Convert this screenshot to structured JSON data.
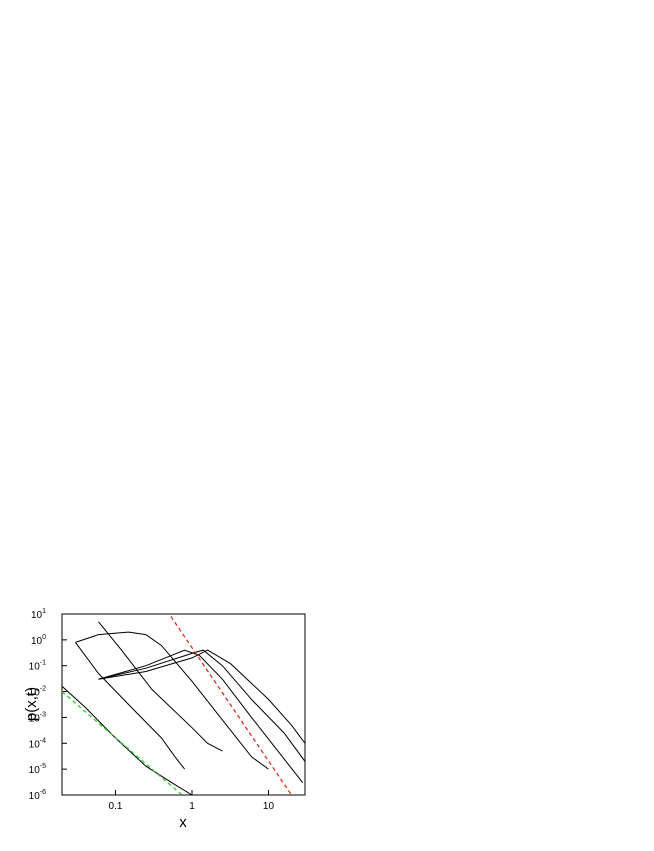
{
  "chart_data": {
    "type": "line",
    "xlabel": "x",
    "ylabel": "p(x,t)",
    "xscale": "log",
    "yscale": "log",
    "xlim": [
      0.02,
      30
    ],
    "ylim": [
      1e-06,
      10
    ],
    "xticks": [
      0.1,
      1,
      10
    ],
    "yticks": [
      {
        "value": 10,
        "label": "10",
        "exponent": "1"
      },
      {
        "value": 1,
        "label": "10",
        "exponent": "0"
      },
      {
        "value": 0.1,
        "label": "10",
        "exponent": "-1"
      },
      {
        "value": 0.01,
        "label": "10",
        "exponent": "-2"
      },
      {
        "value": 0.001,
        "label": "10",
        "exponent": "-3"
      },
      {
        "value": 0.0001,
        "label": "10",
        "exponent": "-4"
      },
      {
        "value": 1e-05,
        "label": "10",
        "exponent": "-5"
      },
      {
        "value": 1e-06,
        "label": "10",
        "exponent": "-6"
      }
    ],
    "series": [
      {
        "color": "#000000",
        "dashed": false,
        "x": [
          0.02,
          0.04,
          0.1,
          0.25,
          0.6,
          1
        ],
        "values": [
          0.016,
          0.0025,
          0.00016,
          1.3e-05,
          2.5e-06,
          1e-06
        ]
      },
      {
        "color": "#000000",
        "dashed": false,
        "x": [
          0.03,
          0.06,
          0.16,
          0.4,
          0.6,
          0.8
        ],
        "values": [
          0.8,
          0.05,
          0.0025,
          0.00016,
          3e-05,
          1e-05
        ]
      },
      {
        "color": "#000000",
        "dashed": false,
        "x": [
          0.06,
          0.12,
          0.3,
          1,
          1.6,
          2.5
        ],
        "values": [
          5,
          0.4,
          0.012,
          0.0004,
          0.0001,
          5e-05
        ]
      },
      {
        "color": "#000000",
        "dashed": false,
        "x": [
          0.03,
          0.06,
          0.15,
          0.25,
          0.4,
          1,
          2.5,
          6,
          10
        ],
        "values": [
          0.8,
          1.6,
          2,
          1.6,
          0.6,
          0.025,
          0.0008,
          3e-05,
          1e-05
        ]
      },
      {
        "color": "#000000",
        "dashed": false,
        "x": [
          0.06,
          0.25,
          0.8,
          1.25,
          2.5,
          6,
          16,
          28
        ],
        "values": [
          0.03,
          0.1,
          0.4,
          0.25,
          0.03,
          0.001,
          2.5e-05,
          3e-06
        ]
      },
      {
        "color": "#000000",
        "dashed": false,
        "x": [
          0.06,
          0.25,
          1,
          1.4,
          2.5,
          6,
          16,
          30
        ],
        "values": [
          0.03,
          0.08,
          0.3,
          0.4,
          0.1,
          0.005,
          0.00025,
          2e-05
        ]
      },
      {
        "color": "#000000",
        "dashed": false,
        "x": [
          0.06,
          0.25,
          1,
          1.6,
          3.2,
          10,
          20,
          30
        ],
        "values": [
          0.03,
          0.06,
          0.2,
          0.4,
          0.12,
          0.005,
          0.0005,
          0.0001
        ]
      },
      {
        "color": "#e03020",
        "dashed": true,
        "x": [
          0.53,
          20
        ],
        "values": [
          8,
          1e-06
        ]
      },
      {
        "color": "#30d030",
        "dashed": true,
        "x": [
          0.02,
          0.74
        ],
        "values": [
          0.01,
          1e-06
        ]
      }
    ]
  }
}
